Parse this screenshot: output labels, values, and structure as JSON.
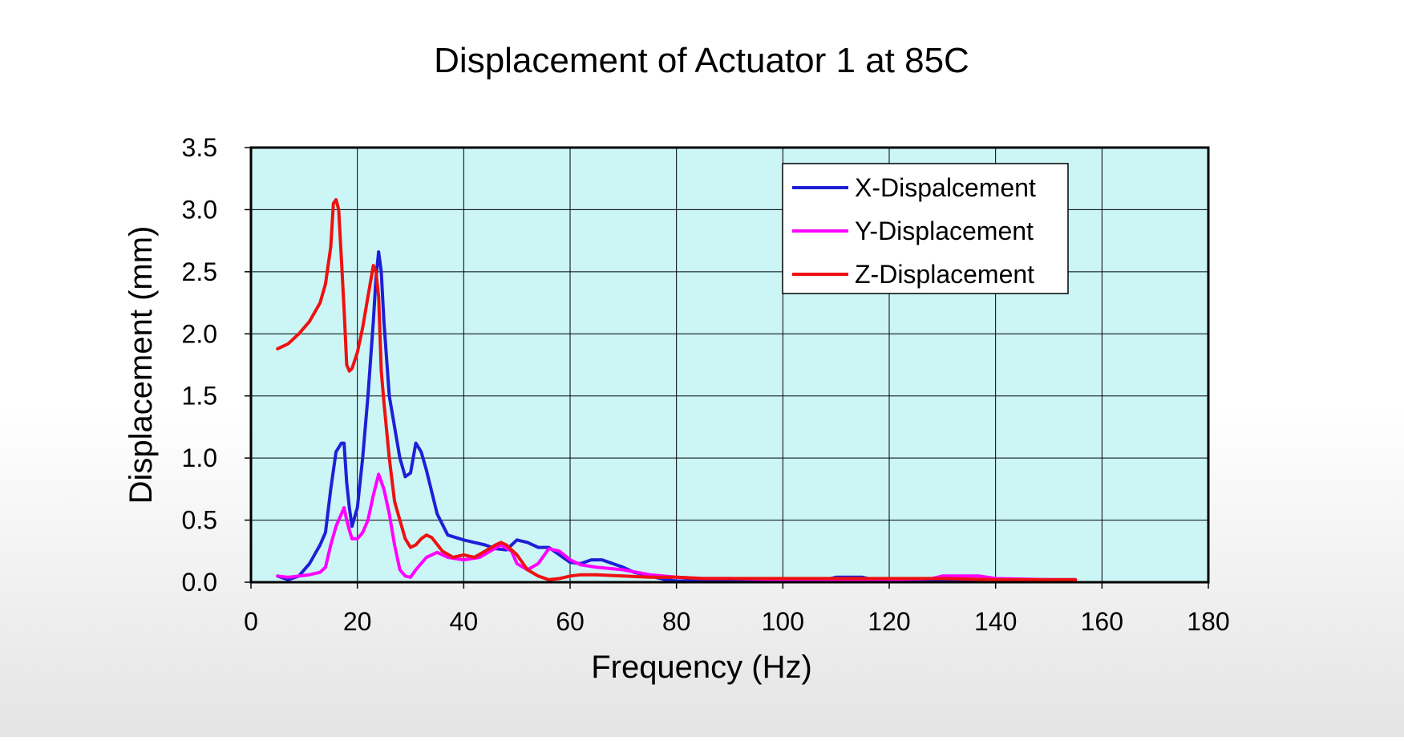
{
  "chart_data": {
    "type": "line",
    "title": "Displacement of Actuator 1 at 85C",
    "xlabel": "Frequency (Hz)",
    "ylabel": "Displacement (mm)",
    "xlim": [
      0,
      180
    ],
    "ylim": [
      0,
      3.5
    ],
    "x_ticks": [
      "0",
      "20",
      "40",
      "60",
      "80",
      "100",
      "120",
      "140",
      "160",
      "180"
    ],
    "y_ticks": [
      "0.0",
      "0.5",
      "1.0",
      "1.5",
      "2.0",
      "2.5",
      "3.0",
      "3.5"
    ],
    "grid": true,
    "legend_position": "top-right",
    "plot_background": "#ccf5f5",
    "series": [
      {
        "name": "X-Dispalcement",
        "color": "#1f1fd6",
        "x": [
          5,
          7,
          9,
          11,
          13,
          14,
          15,
          16,
          17,
          17.5,
          18,
          18.5,
          19,
          20,
          21,
          22,
          23,
          23.5,
          24,
          24.5,
          25,
          26,
          27,
          28,
          29,
          30,
          31,
          32,
          33,
          35,
          37,
          40,
          42,
          44,
          46,
          48,
          50,
          52,
          54,
          56,
          58,
          60,
          62,
          64,
          66,
          68,
          70,
          72,
          74,
          76,
          78,
          80,
          85,
          90,
          100,
          108,
          110,
          112,
          115,
          117,
          120,
          130,
          140,
          150,
          155
        ],
        "y": [
          0.05,
          0.02,
          0.05,
          0.15,
          0.3,
          0.4,
          0.75,
          1.05,
          1.12,
          1.12,
          0.8,
          0.6,
          0.45,
          0.6,
          1.0,
          1.5,
          2.1,
          2.45,
          2.66,
          2.5,
          2.1,
          1.5,
          1.25,
          1.0,
          0.85,
          0.88,
          1.12,
          1.05,
          0.9,
          0.55,
          0.38,
          0.34,
          0.32,
          0.3,
          0.27,
          0.26,
          0.34,
          0.32,
          0.28,
          0.28,
          0.22,
          0.16,
          0.15,
          0.18,
          0.18,
          0.15,
          0.12,
          0.08,
          0.06,
          0.04,
          0.02,
          0.01,
          0.01,
          0.01,
          0.01,
          0.02,
          0.04,
          0.04,
          0.04,
          0.02,
          0.02,
          0.02,
          0.02,
          0.02,
          0.02
        ]
      },
      {
        "name": "Y-Displacement",
        "color": "#ff00ff",
        "x": [
          5,
          7,
          9,
          11,
          13,
          14,
          15,
          16,
          17,
          17.5,
          18,
          18.5,
          19,
          20,
          21,
          22,
          23,
          24,
          25,
          26,
          27,
          28,
          29,
          30,
          31,
          33,
          35,
          37,
          40,
          43,
          45,
          47,
          49,
          50,
          52,
          54,
          56,
          58,
          60,
          62,
          65,
          70,
          75,
          80,
          85,
          90,
          100,
          110,
          120,
          128,
          130,
          135,
          137,
          140,
          150,
          155
        ],
        "y": [
          0.05,
          0.04,
          0.05,
          0.06,
          0.08,
          0.12,
          0.3,
          0.45,
          0.55,
          0.6,
          0.5,
          0.42,
          0.35,
          0.35,
          0.4,
          0.5,
          0.7,
          0.87,
          0.75,
          0.55,
          0.3,
          0.1,
          0.05,
          0.04,
          0.1,
          0.2,
          0.24,
          0.2,
          0.18,
          0.2,
          0.25,
          0.3,
          0.25,
          0.15,
          0.1,
          0.15,
          0.27,
          0.25,
          0.18,
          0.14,
          0.12,
          0.1,
          0.06,
          0.04,
          0.03,
          0.03,
          0.02,
          0.02,
          0.02,
          0.03,
          0.05,
          0.05,
          0.05,
          0.03,
          0.02,
          0.02
        ]
      },
      {
        "name": "Z-Displacement",
        "color": "#ee1111",
        "x": [
          5,
          7,
          9,
          11,
          13,
          14,
          15,
          15.5,
          16,
          16.5,
          17,
          17.5,
          18,
          18.5,
          19,
          20,
          21,
          22,
          23,
          23.5,
          24,
          24.5,
          25,
          26,
          27,
          28,
          29,
          30,
          31,
          32,
          33,
          34,
          36,
          38,
          40,
          42,
          44,
          46,
          47,
          48,
          50,
          52,
          54,
          56,
          58,
          60,
          62,
          65,
          70,
          75,
          80,
          85,
          90,
          100,
          110,
          120,
          130,
          140,
          150,
          155
        ],
        "y": [
          1.88,
          1.92,
          2.0,
          2.1,
          2.25,
          2.4,
          2.7,
          3.05,
          3.08,
          3.0,
          2.6,
          2.2,
          1.75,
          1.7,
          1.72,
          1.85,
          2.05,
          2.3,
          2.55,
          2.5,
          2.3,
          1.7,
          1.45,
          1.0,
          0.65,
          0.5,
          0.35,
          0.28,
          0.3,
          0.35,
          0.38,
          0.36,
          0.25,
          0.2,
          0.22,
          0.2,
          0.25,
          0.3,
          0.32,
          0.3,
          0.22,
          0.1,
          0.05,
          0.02,
          0.03,
          0.05,
          0.06,
          0.06,
          0.05,
          0.04,
          0.04,
          0.03,
          0.03,
          0.03,
          0.03,
          0.03,
          0.03,
          0.02,
          0.02,
          0.02
        ]
      }
    ]
  }
}
